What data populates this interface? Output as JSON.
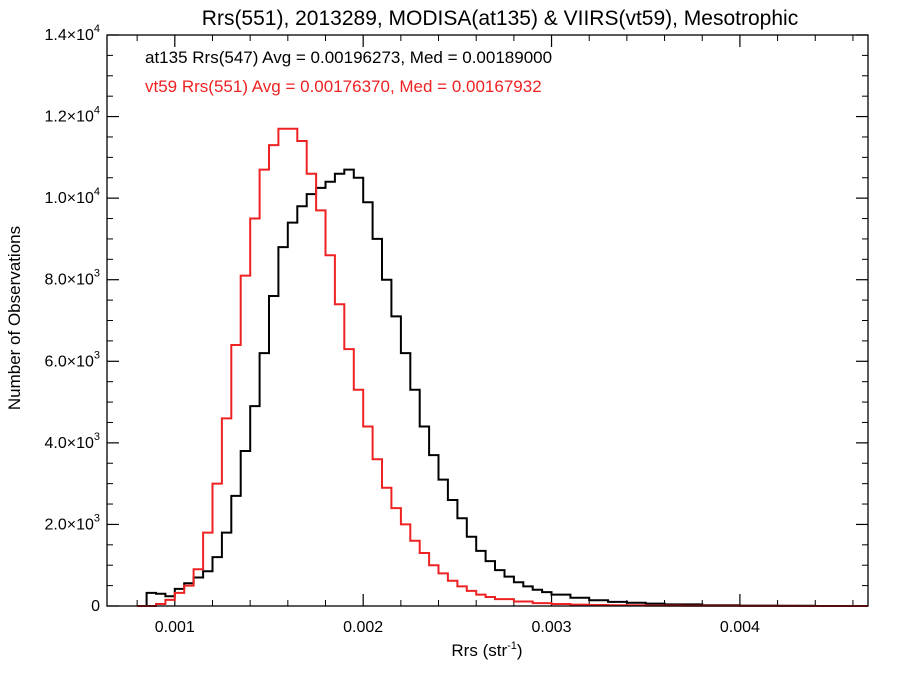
{
  "chart_data": {
    "type": "line",
    "title": "Rrs(551), 2013289, MODISA(at135) & VIIRS(vt59), Mesotrophic",
    "xlabel": "Rrs (str⁻¹)",
    "ylabel": "Number of Observations",
    "xlim": [
      0.00064,
      0.00468
    ],
    "ylim": [
      0,
      14000
    ],
    "x_ticks": [
      0.001,
      0.002,
      0.003,
      0.004
    ],
    "x_tick_labels": [
      "0.001",
      "0.002",
      "0.003",
      "0.004"
    ],
    "y_ticks": [
      {
        "value": 0,
        "mantissa": "0",
        "exp": ""
      },
      {
        "value": 2000,
        "mantissa": "2.0×10",
        "exp": "3"
      },
      {
        "value": 4000,
        "mantissa": "4.0×10",
        "exp": "3"
      },
      {
        "value": 6000,
        "mantissa": "6.0×10",
        "exp": "3"
      },
      {
        "value": 8000,
        "mantissa": "8.0×10",
        "exp": "3"
      },
      {
        "value": 10000,
        "mantissa": "1.0×10",
        "exp": "4"
      },
      {
        "value": 12000,
        "mantissa": "1.2×10",
        "exp": "4"
      },
      {
        "value": 14000,
        "mantissa": "1.4×10",
        "exp": "4"
      }
    ],
    "grid": false,
    "legend_placement": "top-left",
    "series": [
      {
        "name": "at135 Rrs(547) Avg = 0.00196273, Med = 0.00189000",
        "color": "#000000",
        "x": [
          0.0008,
          0.00085,
          0.0009,
          0.00095,
          0.001,
          0.00105,
          0.0011,
          0.00115,
          0.0012,
          0.00125,
          0.0013,
          0.00135,
          0.0014,
          0.00145,
          0.0015,
          0.00155,
          0.0016,
          0.00165,
          0.0017,
          0.00175,
          0.0018,
          0.00185,
          0.0019,
          0.00195,
          0.002,
          0.00205,
          0.0021,
          0.00215,
          0.0022,
          0.00225,
          0.0023,
          0.00235,
          0.0024,
          0.00245,
          0.0025,
          0.00255,
          0.0026,
          0.00265,
          0.0027,
          0.00275,
          0.0028,
          0.00285,
          0.0029,
          0.00295,
          0.003,
          0.0031,
          0.0032,
          0.0033,
          0.0034,
          0.0035,
          0.0036,
          0.0038,
          0.004,
          0.0042,
          0.0044,
          0.0046
        ],
        "y": [
          0,
          320,
          300,
          240,
          420,
          560,
          700,
          850,
          1200,
          1800,
          2700,
          3800,
          4900,
          6200,
          7600,
          8800,
          9400,
          9800,
          10100,
          10250,
          10400,
          10600,
          10700,
          10500,
          9900,
          9000,
          8000,
          7100,
          6200,
          5300,
          4400,
          3700,
          3100,
          2600,
          2150,
          1700,
          1350,
          1100,
          880,
          720,
          580,
          480,
          400,
          340,
          280,
          200,
          140,
          100,
          80,
          60,
          40,
          20,
          10,
          5,
          0,
          0
        ]
      },
      {
        "name": "vt59 Rrs(551) Avg = 0.00176370, Med = 0.00167932",
        "color": "#ee2222",
        "x": [
          0.0008,
          0.00085,
          0.0009,
          0.00095,
          0.001,
          0.00105,
          0.0011,
          0.00115,
          0.0012,
          0.00125,
          0.0013,
          0.00135,
          0.0014,
          0.00145,
          0.0015,
          0.00155,
          0.0016,
          0.00165,
          0.0017,
          0.00175,
          0.0018,
          0.00185,
          0.0019,
          0.00195,
          0.002,
          0.00205,
          0.0021,
          0.00215,
          0.0022,
          0.00225,
          0.0023,
          0.00235,
          0.0024,
          0.00245,
          0.0025,
          0.00255,
          0.0026,
          0.00265,
          0.0027,
          0.0028,
          0.0029,
          0.003,
          0.0031,
          0.0032,
          0.0033,
          0.0035,
          0.0037,
          0.004,
          0.0043,
          0.0046
        ],
        "y": [
          0,
          0,
          50,
          150,
          320,
          500,
          900,
          1800,
          3000,
          4600,
          6400,
          8100,
          9500,
          10700,
          11300,
          11700,
          11700,
          11400,
          10600,
          9700,
          8600,
          7400,
          6300,
          5300,
          4400,
          3600,
          2900,
          2400,
          2000,
          1600,
          1300,
          1000,
          800,
          620,
          480,
          370,
          280,
          220,
          170,
          110,
          70,
          50,
          35,
          25,
          18,
          10,
          6,
          3,
          1,
          0
        ]
      }
    ]
  }
}
